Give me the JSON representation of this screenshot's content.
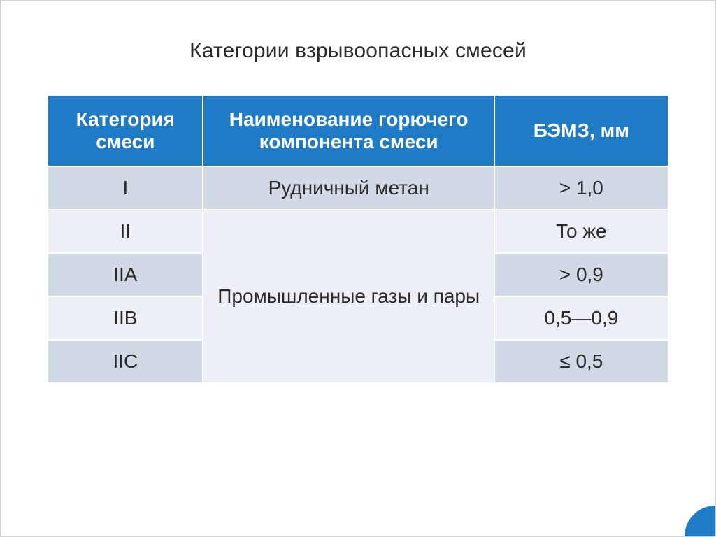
{
  "title": "Категории взрывоопасных смесей",
  "table": {
    "type": "table",
    "headers": [
      "Категория смеси",
      "Наименование горючего компонента смеси",
      "БЭМЗ, мм"
    ],
    "column_widths_pct": [
      25,
      47,
      28
    ],
    "header_bg": "#1f7bc5",
    "header_fg": "#ffffff",
    "row_bg_odd": "#d2d9e6",
    "row_bg_even": "#ecf0f6",
    "font_size_pt": 21,
    "merged_component": "Промышленные газы и пары",
    "rows": [
      {
        "category": "I",
        "component": "Рудничный метан",
        "bemz": "> 1,0"
      },
      {
        "category": "II",
        "bemz": "То же"
      },
      {
        "category": "IIA",
        "bemz": "> 0,9"
      },
      {
        "category": "IIB",
        "bemz": "0,5—0,9"
      },
      {
        "category": "IIC",
        "bemz": "≤ 0,5"
      }
    ]
  },
  "accent_color": "#1f7bc5",
  "background_color": "#ffffff",
  "text_color": "#2a2a2a"
}
